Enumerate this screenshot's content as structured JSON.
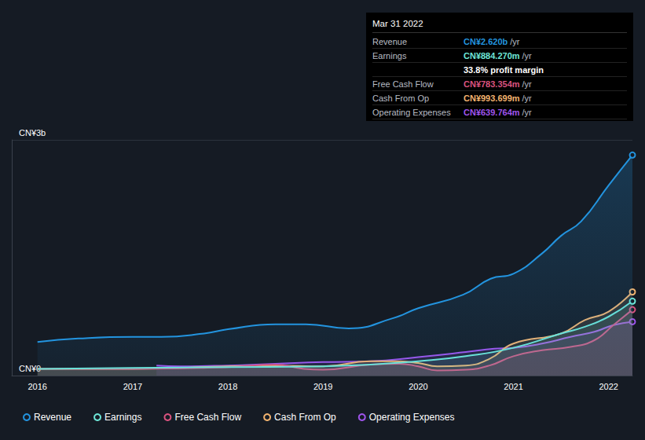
{
  "chart_data": {
    "type": "line",
    "xlim": [
      2015.73,
      2022.25
    ],
    "xticks": [
      2016,
      2017,
      2018,
      2019,
      2020,
      2021,
      2022
    ],
    "ylim": [
      0,
      2.8
    ],
    "yticks": [
      {
        "value": 0,
        "label": "CN¥0"
      },
      {
        "value": 2.8,
        "label": "CN¥3b"
      }
    ],
    "grid": true,
    "legend": "bottom-left",
    "series": [
      {
        "name": "Revenue",
        "color": "#2394df",
        "x": [
          2016.0,
          2016.43,
          2017.0,
          2017.3,
          2017.75,
          2018.0,
          2018.5,
          2018.82,
          2019.27,
          2019.73,
          2020.0,
          2020.47,
          2020.76,
          2021.0,
          2021.3,
          2021.5,
          2021.71,
          2022.0,
          2022.25
        ],
        "values": [
          0.4,
          0.44,
          0.46,
          0.46,
          0.5,
          0.55,
          0.61,
          0.61,
          0.56,
          0.68,
          0.8,
          0.96,
          1.15,
          1.21,
          1.45,
          1.66,
          1.83,
          2.26,
          2.62
        ]
      },
      {
        "name": "Earnings",
        "color": "#6ee7d8",
        "x": [
          2016.0,
          2017.0,
          2018.0,
          2019.0,
          2019.5,
          2020.0,
          2020.5,
          2021.0,
          2021.5,
          2021.75,
          2022.0,
          2022.25
        ],
        "values": [
          0.08,
          0.09,
          0.1,
          0.11,
          0.13,
          0.17,
          0.23,
          0.33,
          0.5,
          0.58,
          0.7,
          0.884
        ]
      },
      {
        "name": "Free Cash Flow",
        "color": "#d9537f",
        "x": [
          2016.0,
          2017.0,
          2018.0,
          2018.5,
          2018.8,
          2019.0,
          2019.5,
          2019.8,
          2020.0,
          2020.2,
          2020.5,
          2020.75,
          2021.0,
          2021.3,
          2021.6,
          2021.85,
          2022.05,
          2022.25
        ],
        "values": [
          0.08,
          0.08,
          0.1,
          0.13,
          0.08,
          0.07,
          0.13,
          0.14,
          0.11,
          0.06,
          0.07,
          0.12,
          0.23,
          0.3,
          0.34,
          0.42,
          0.6,
          0.783
        ]
      },
      {
        "name": "Cash From Op",
        "color": "#f2b36f",
        "x": [
          2016.0,
          2017.0,
          2018.0,
          2018.5,
          2019.0,
          2019.5,
          2019.75,
          2020.0,
          2020.2,
          2020.5,
          2020.75,
          2021.0,
          2021.5,
          2021.75,
          2022.0,
          2022.25
        ],
        "values": [
          0.08,
          0.08,
          0.11,
          0.12,
          0.11,
          0.17,
          0.17,
          0.15,
          0.11,
          0.12,
          0.2,
          0.38,
          0.5,
          0.66,
          0.76,
          0.994
        ]
      },
      {
        "name": "Operating Expenses",
        "color": "#9f54ec",
        "x": [
          2017.25,
          2017.5,
          2018.0,
          2018.5,
          2019.0,
          2019.5,
          2020.0,
          2020.5,
          2020.8,
          2021.0,
          2021.3,
          2021.6,
          2021.85,
          2022.05,
          2022.25
        ],
        "values": [
          0.12,
          0.11,
          0.12,
          0.14,
          0.16,
          0.17,
          0.22,
          0.28,
          0.32,
          0.33,
          0.38,
          0.46,
          0.52,
          0.6,
          0.64
        ]
      }
    ],
    "annotation": {
      "date": "Mar 31 2022",
      "rows": [
        {
          "label": "Revenue",
          "value": "CN¥2.620b",
          "suffix": "/yr",
          "color": "#2394df"
        },
        {
          "label": "Earnings",
          "value": "CN¥884.270m",
          "suffix": "/yr",
          "color": "#6ee7d8"
        },
        {
          "label": "",
          "value": "33.8%",
          "suffix": "profit margin",
          "color": "#ffffff"
        },
        {
          "label": "Free Cash Flow",
          "value": "CN¥783.354m",
          "suffix": "/yr",
          "color": "#d9537f"
        },
        {
          "label": "Cash From Op",
          "value": "CN¥993.699m",
          "suffix": "/yr",
          "color": "#f2b36f"
        },
        {
          "label": "Operating Expenses",
          "value": "CN¥639.764m",
          "suffix": "/yr",
          "color": "#9f54ec"
        }
      ]
    }
  }
}
